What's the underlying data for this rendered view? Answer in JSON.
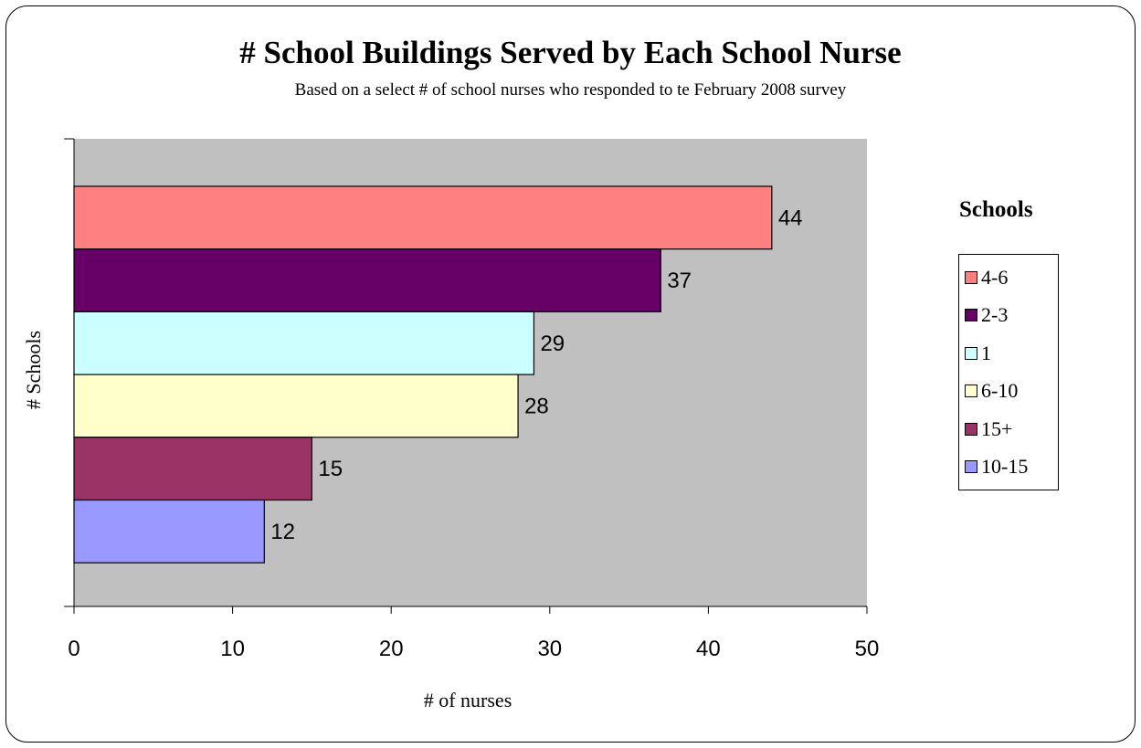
{
  "chart_data": {
    "type": "bar",
    "orientation": "horizontal",
    "title": "# School Buildings Served by Each School Nurse",
    "subtitle": "Based on a select # of school nurses who responded to te February 2008 survey",
    "xlabel": "# of nurses",
    "ylabel": "# Schools",
    "xlim": [
      0,
      50
    ],
    "xticks": [
      "0",
      "10",
      "20",
      "30",
      "40",
      "50"
    ],
    "grid": false,
    "legend_title": "Schools",
    "legend_position": "right",
    "categories": [
      "4-6",
      "2-3",
      "1",
      "6-10",
      "15+",
      "10-15"
    ],
    "values": [
      44,
      37,
      29,
      28,
      15,
      12
    ],
    "colors": [
      "#ff8080",
      "#660066",
      "#ccffff",
      "#ffffcc",
      "#993366",
      "#9999ff"
    ],
    "plot_background": "#c0c0c0"
  }
}
